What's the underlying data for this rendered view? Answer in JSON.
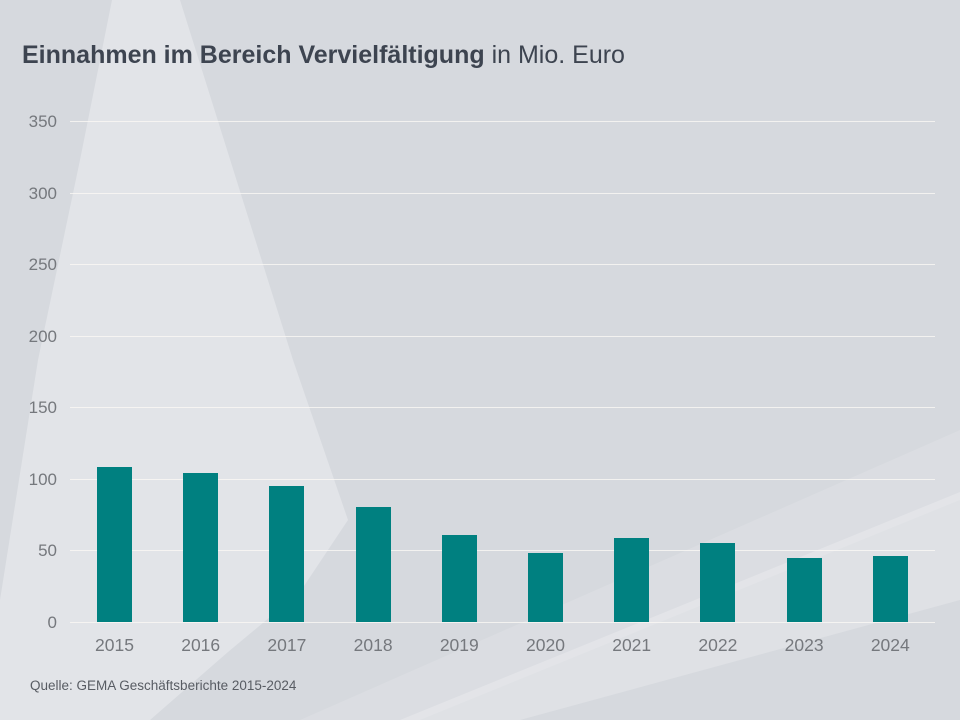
{
  "title": {
    "bold": "Einnahmen im Bereich Vervielfältigung",
    "regular": " in Mio. Euro"
  },
  "source": "Quelle: GEMA Geschäftsberichte 2015-2024",
  "colors": {
    "background": "#d6d9de",
    "beam": "#e2e4e8",
    "bar": "#008080",
    "title_text": "#3d4450",
    "axis_text": "#75787d",
    "gridline": "#fcfaf5"
  },
  "chart_data": {
    "type": "bar",
    "title": "Einnahmen im Bereich Vervielfältigung in Mio. Euro",
    "categories": [
      "2015",
      "2016",
      "2017",
      "2018",
      "2019",
      "2020",
      "2021",
      "2022",
      "2023",
      "2024"
    ],
    "values": [
      108,
      104,
      95,
      80,
      61,
      48,
      59,
      55,
      45,
      46
    ],
    "unit": "Mio. Euro",
    "xlabel": "",
    "ylabel": "",
    "ylim": [
      0,
      350
    ],
    "yticks": [
      0,
      50,
      100,
      150,
      200,
      250,
      300,
      350
    ],
    "grid": true,
    "legend": false
  }
}
